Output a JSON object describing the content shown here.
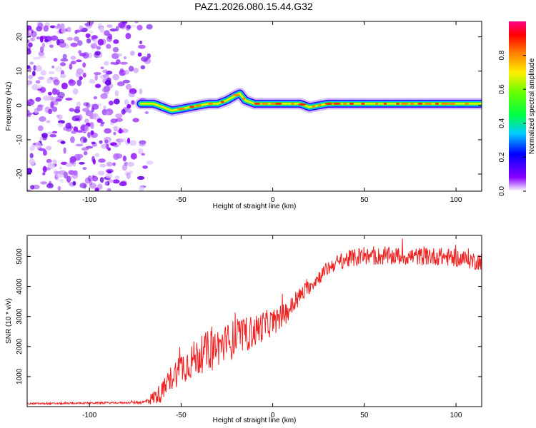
{
  "title": "PAZ1.2026.080.15.44.G32",
  "colors": {
    "snr_line": "#ee2222",
    "frame": "#000000"
  },
  "chart_data": [
    {
      "type": "heatmap",
      "xlabel": "Height of straight line (km)",
      "ylabel": "Frequency (Hz)",
      "xlim": [
        -134,
        114
      ],
      "ylim": [
        -25,
        24.5
      ],
      "xticks": [
        -100,
        -50,
        0,
        50,
        100
      ],
      "xtick_labels": [
        "-100",
        "-50",
        "0",
        "50",
        "100"
      ],
      "yticks": [
        -20,
        -10,
        0,
        10,
        20
      ],
      "ytick_labels": [
        "-20",
        "-10",
        "0",
        "10",
        "20"
      ],
      "colorbar": {
        "label": "Normalized spectral amplitude",
        "range": [
          0.0,
          1.0
        ],
        "ticks": [
          0.0,
          0.2,
          0.4,
          0.6,
          0.8
        ],
        "tick_labels": [
          "0.0",
          "0.2",
          "0.4",
          "0.6",
          "0.8"
        ]
      },
      "ridge": {
        "x": [
          -72,
          -65,
          -60,
          -55,
          -50,
          -45,
          -40,
          -35,
          -30,
          -25,
          -20,
          -18,
          -15,
          -10,
          -5,
          0,
          5,
          10,
          15,
          20,
          25,
          30,
          40,
          50,
          60,
          70,
          80,
          90,
          100,
          114
        ],
        "y": [
          0.5,
          0.5,
          -0.5,
          -1.5,
          -1.0,
          -0.5,
          0.0,
          0.5,
          0.5,
          1.5,
          3.0,
          3.5,
          1.5,
          0.5,
          0.5,
          0.5,
          0.5,
          0.5,
          0.5,
          -0.5,
          0.0,
          0.5,
          0.5,
          0.5,
          0.5,
          0.5,
          0.5,
          0.5,
          0.5,
          0.5
        ]
      },
      "noise_region": {
        "x_from": -134,
        "x_to": -67
      }
    },
    {
      "type": "line",
      "xlabel": "Height of straight line (km)",
      "ylabel": "SNR (10 * v/v)",
      "xlim": [
        -134,
        114
      ],
      "ylim": [
        0,
        5700
      ],
      "xticks": [
        -100,
        -50,
        0,
        50,
        100
      ],
      "xtick_labels": [
        "-100",
        "-50",
        "0",
        "50",
        "100"
      ],
      "yticks": [
        1000,
        2000,
        3000,
        4000,
        5000
      ],
      "ytick_labels": [
        "1000",
        "2000",
        "3000",
        "4000",
        "5000"
      ],
      "series": [
        {
          "name": "SNR",
          "x": [
            -134,
            -120,
            -100,
            -80,
            -70,
            -65,
            -60,
            -55,
            -50,
            -45,
            -40,
            -35,
            -30,
            -25,
            -20,
            -15,
            -10,
            -5,
            0,
            5,
            10,
            15,
            20,
            25,
            30,
            35,
            40,
            50,
            60,
            70,
            80,
            90,
            100,
            110,
            114
          ],
          "y": [
            100,
            100,
            120,
            130,
            150,
            300,
            500,
            1000,
            1300,
            1500,
            1700,
            1900,
            2000,
            2100,
            2300,
            2400,
            2500,
            2700,
            2800,
            3000,
            3300,
            3700,
            4000,
            4300,
            4600,
            4800,
            4900,
            5000,
            5000,
            5000,
            5000,
            5000,
            4950,
            4850,
            4850
          ],
          "noise": [
            30,
            30,
            30,
            30,
            60,
            250,
            350,
            450,
            550,
            600,
            650,
            650,
            650,
            650,
            650,
            600,
            550,
            500,
            450,
            400,
            350,
            300,
            250,
            250,
            250,
            250,
            300,
            300,
            300,
            300,
            300,
            300,
            300,
            300,
            300
          ]
        }
      ]
    }
  ]
}
